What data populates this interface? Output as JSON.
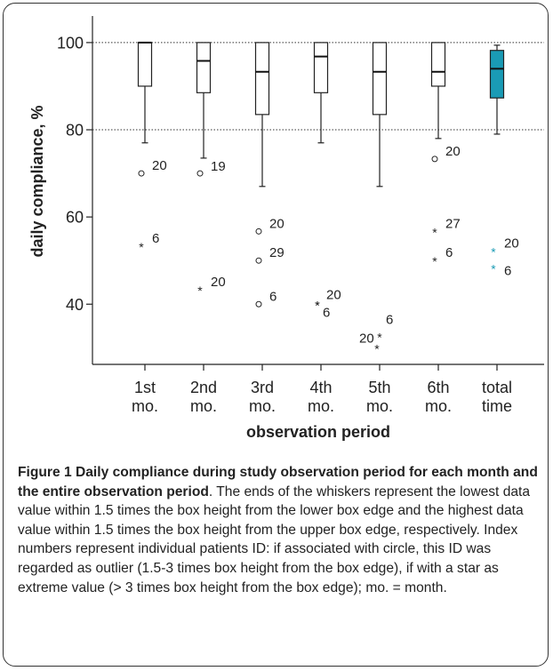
{
  "chart_data": {
    "type": "box",
    "title": "",
    "xlabel": "observation period",
    "ylabel": "daily compliance, %",
    "ylim": [
      25,
      104
    ],
    "y_ticks": [
      40,
      60,
      80,
      100
    ],
    "reference_lines": [
      80,
      100
    ],
    "grid": false,
    "categories": [
      [
        "1st",
        "mo."
      ],
      [
        "2nd",
        "mo."
      ],
      [
        "3rd",
        "mo."
      ],
      [
        "4th",
        "mo."
      ],
      [
        "5th",
        "mo."
      ],
      [
        "6th",
        "mo."
      ],
      [
        "total",
        "time"
      ]
    ],
    "boxes": [
      {
        "q1": 90,
        "median": 100,
        "q3": 100,
        "whisker_low": 77,
        "whisker_high": 100,
        "fill": "#ffffff"
      },
      {
        "q1": 88.5,
        "median": 95.8,
        "q3": 100,
        "whisker_low": 73.5,
        "whisker_high": 100,
        "fill": "#ffffff"
      },
      {
        "q1": 83.5,
        "median": 93.3,
        "q3": 100,
        "whisker_low": 67,
        "whisker_high": 100,
        "fill": "#ffffff"
      },
      {
        "q1": 88.5,
        "median": 96.8,
        "q3": 100,
        "whisker_low": 77,
        "whisker_high": 100,
        "fill": "#ffffff"
      },
      {
        "q1": 83.5,
        "median": 93.3,
        "q3": 100,
        "whisker_low": 67,
        "whisker_high": 100,
        "fill": "#ffffff"
      },
      {
        "q1": 90,
        "median": 93.3,
        "q3": 100,
        "whisker_low": 78,
        "whisker_high": 100,
        "fill": "#ffffff"
      },
      {
        "q1": 87.3,
        "median": 94,
        "q3": 98.2,
        "whisker_low": 79,
        "whisker_high": 99.4,
        "fill": "#1a9bb5"
      }
    ],
    "outliers": [
      {
        "group": 0,
        "value": 70,
        "marker": "circle",
        "label": "20"
      },
      {
        "group": 0,
        "value": 53.3,
        "marker": "star",
        "label": "6"
      },
      {
        "group": 1,
        "value": 70,
        "marker": "circle",
        "label": "19"
      },
      {
        "group": 1,
        "value": 43.3,
        "marker": "star",
        "label": "20"
      },
      {
        "group": 2,
        "value": 56.7,
        "marker": "circle",
        "label": "20"
      },
      {
        "group": 2,
        "value": 50,
        "marker": "circle",
        "label": "29"
      },
      {
        "group": 2,
        "value": 40,
        "marker": "circle",
        "label": "6"
      },
      {
        "group": 3,
        "value": 40,
        "marker": "star",
        "label": "20"
      },
      {
        "group": 3,
        "value": 40,
        "marker": "star",
        "label": "6"
      },
      {
        "group": 4,
        "value": 30,
        "marker": "star",
        "label": "20"
      },
      {
        "group": 4,
        "value": 30,
        "marker": "star",
        "label": "6"
      },
      {
        "group": 5,
        "value": 73.3,
        "marker": "circle",
        "label": "20"
      },
      {
        "group": 5,
        "value": 56.7,
        "marker": "star",
        "label": "27"
      },
      {
        "group": 5,
        "value": 50,
        "marker": "star",
        "label": "6"
      },
      {
        "group": 6,
        "value": 52.2,
        "marker": "star",
        "label": "20"
      },
      {
        "group": 6,
        "value": 48.3,
        "marker": "star",
        "label": "6"
      }
    ],
    "colors": {
      "box_line": "#222222",
      "total_fill": "#1a9bb5",
      "total_outlier": "#1a9bb5",
      "reference_line": "#333333"
    }
  },
  "caption": {
    "title": "Figure 1 Daily compliance during study observation period for each month and the entire observation period",
    "text": ". The ends of the whiskers represent the lowest data value within 1.5 times the box height from the lower box edge and the highest data value within 1.5 times the box height from the upper box edge, respectively. Index numbers represent individual patients ID: if associated with circle, this ID was regarded as outlier (1.5-3 times box height from the box edge), if with a star as extreme value (> 3 times box height from the box edge); mo. = month."
  }
}
